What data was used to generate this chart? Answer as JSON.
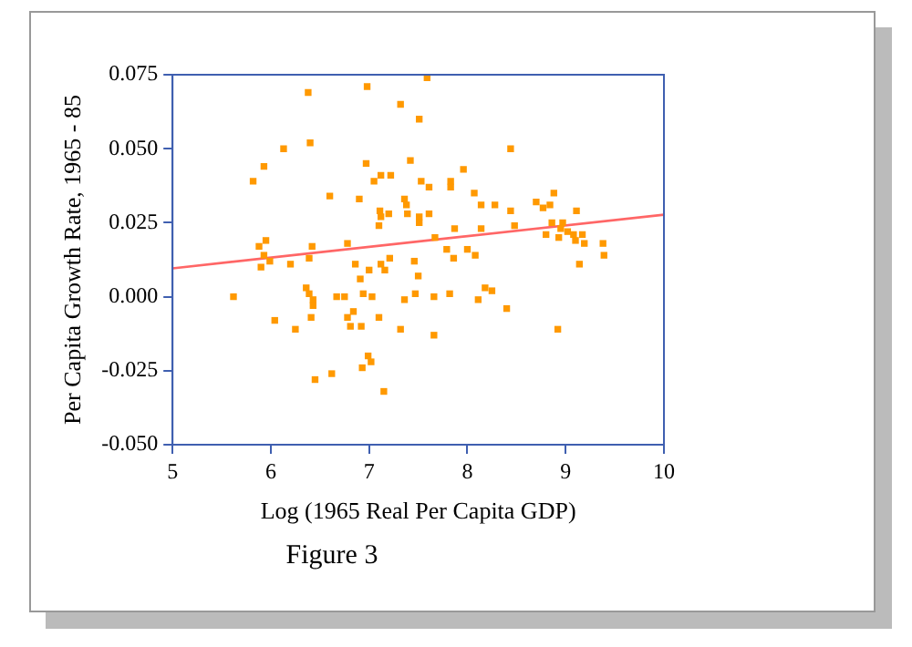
{
  "chart_data": {
    "type": "scatter",
    "xlabel": "Log (1965 Real Per Capita GDP)",
    "ylabel": "Per Capita Growth Rate, 1965 - 85",
    "annotations": [
      "Figure 3"
    ],
    "xlim": [
      5,
      10
    ],
    "xticks": [
      5,
      6,
      7,
      8,
      9,
      10
    ],
    "ylim": [
      -0.05,
      0.075
    ],
    "yticks": [
      {
        "value": -0.05,
        "label": "-0.050"
      },
      -0.025,
      {
        "value": 0,
        "label": "0.000"
      },
      0.025,
      {
        "value": 0.05,
        "label": "0.050"
      },
      0.075
    ],
    "grid": false,
    "legend": false,
    "series": [
      {
        "color": "#ff9900",
        "marker": "square",
        "x": [
          6.38,
          6.98,
          7.59,
          7.32,
          7.51,
          6.13,
          6.4,
          5.93,
          5.82,
          6.97,
          7.42,
          7.96,
          6.6,
          6.9,
          7.05,
          7.12,
          7.22,
          7.36,
          7.53,
          7.61,
          7.83,
          7.83,
          7.11,
          7.12,
          7.2,
          7.39,
          7.51,
          7.61,
          7.38,
          7.1,
          7.51,
          7.87,
          8.44,
          8.07,
          8.14,
          8.28,
          8.7,
          8.77,
          8.84,
          8.88,
          9.11,
          8.44,
          8.14,
          8.48,
          8.86,
          8.97,
          8.95,
          9.02,
          9.08,
          5.88,
          5.95,
          5.99,
          5.93,
          5.9,
          6.2,
          6.42,
          6.39,
          6.78,
          6.86,
          7.12,
          7.21,
          7.16,
          7.0,
          6.91,
          7.46,
          7.5,
          5.62,
          6.36,
          6.39,
          6.43,
          6.43,
          6.67,
          6.75,
          6.94,
          7.03,
          7.36,
          7.47,
          7.66,
          7.82,
          6.84,
          6.78,
          6.81,
          6.92,
          7.1,
          6.41,
          6.04,
          6.25,
          7.32,
          7.66,
          6.99,
          7.02,
          6.93,
          6.62,
          6.45,
          7.15,
          7.67,
          7.79,
          7.86,
          8.8,
          8.93,
          9.1,
          9.17,
          9.19,
          9.38,
          9.39,
          8.0,
          8.08,
          8.18,
          8.25,
          8.11,
          8.4,
          9.14,
          8.92
        ],
        "values": [
          0.069,
          0.071,
          0.074,
          0.065,
          0.06,
          0.05,
          0.052,
          0.044,
          0.039,
          0.045,
          0.046,
          0.043,
          0.034,
          0.033,
          0.039,
          0.041,
          0.041,
          0.033,
          0.039,
          0.037,
          0.039,
          0.037,
          0.029,
          0.027,
          0.028,
          0.028,
          0.027,
          0.028,
          0.031,
          0.024,
          0.025,
          0.023,
          0.05,
          0.035,
          0.031,
          0.031,
          0.032,
          0.03,
          0.031,
          0.035,
          0.029,
          0.029,
          0.023,
          0.024,
          0.025,
          0.025,
          0.023,
          0.022,
          0.021,
          0.017,
          0.019,
          0.012,
          0.014,
          0.01,
          0.011,
          0.017,
          0.013,
          0.018,
          0.011,
          0.011,
          0.013,
          0.009,
          0.009,
          0.006,
          0.012,
          0.007,
          0.0,
          0.003,
          0.001,
          -0.001,
          -0.003,
          0.0,
          0.0,
          0.001,
          0.0,
          -0.001,
          0.001,
          0.0,
          0.001,
          -0.005,
          -0.007,
          -0.01,
          -0.01,
          -0.007,
          -0.007,
          -0.008,
          -0.011,
          -0.011,
          -0.013,
          -0.02,
          -0.022,
          -0.024,
          -0.026,
          -0.028,
          -0.032,
          0.02,
          0.016,
          0.013,
          0.021,
          0.02,
          0.019,
          0.021,
          0.018,
          0.018,
          0.014,
          0.016,
          0.014,
          0.003,
          0.002,
          -0.001,
          -0.004,
          0.011,
          -0.011
        ]
      },
      {
        "type": "line",
        "color": "#ff6666",
        "marker": "none",
        "x": [
          5,
          10
        ],
        "values": [
          0.0096,
          0.0277
        ]
      }
    ]
  }
}
